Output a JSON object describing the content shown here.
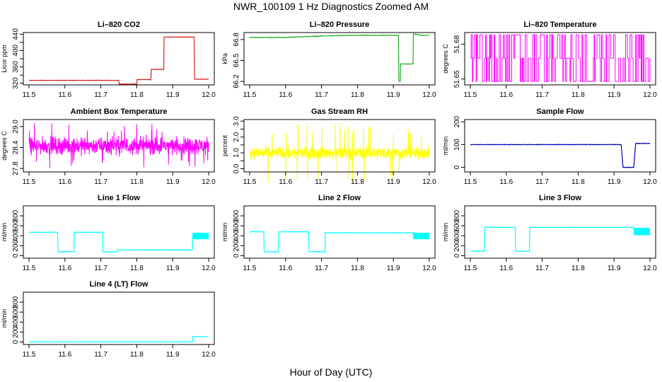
{
  "title": "NWR_100109  1 Hz Diagnostics Zoomed AM",
  "x_axis_title": "Hour of Day (UTC)",
  "chart_data": [
    {
      "type": "line",
      "title": "Li–820 CO2",
      "ylabel": "Licor ppm",
      "color": "#d42020",
      "ylim": [
        316,
        444
      ],
      "yticks": [
        320,
        340,
        360,
        380,
        400,
        420,
        440
      ],
      "ytick_labels": [
        "320",
        "",
        "360",
        "",
        "400",
        "",
        "440"
      ],
      "xlim": [
        11.5,
        12.0
      ],
      "xticks": [
        11.5,
        11.6,
        11.7,
        11.8,
        11.9,
        12.0
      ],
      "noise": 0.8,
      "segments": [
        [
          11.5,
          327
        ],
        [
          11.75,
          327
        ],
        [
          11.75,
          318
        ],
        [
          11.8,
          318
        ],
        [
          11.8,
          329
        ],
        [
          11.84,
          329
        ],
        [
          11.84,
          354
        ],
        [
          11.875,
          354
        ],
        [
          11.875,
          433
        ],
        [
          11.96,
          433
        ],
        [
          11.96,
          330
        ],
        [
          12.0,
          330
        ]
      ]
    },
    {
      "type": "line",
      "title": "Li–820 Pressure",
      "ylabel": "kPa",
      "color": "#20b020",
      "ylim": [
        66.15,
        66.9
      ],
      "yticks": [
        66.2,
        66.5,
        66.8
      ],
      "ytick_labels": [
        "66.2",
        "66.5",
        "66.8"
      ],
      "xlim": [
        11.5,
        12.0
      ],
      "xticks": [
        11.5,
        11.6,
        11.7,
        11.8,
        11.9,
        12.0
      ],
      "noise": 0.006,
      "segments": [
        [
          11.5,
          66.83
        ],
        [
          11.6,
          66.83
        ],
        [
          11.7,
          66.85
        ],
        [
          11.8,
          66.86
        ],
        [
          11.915,
          66.86
        ],
        [
          11.915,
          66.2
        ],
        [
          11.92,
          66.2
        ],
        [
          11.92,
          66.45
        ],
        [
          11.955,
          66.45
        ],
        [
          11.955,
          66.88
        ],
        [
          11.98,
          66.86
        ],
        [
          12.0,
          66.86
        ]
      ]
    },
    {
      "type": "binary",
      "title": "Li–820 Temperature",
      "ylabel": "degrees C",
      "color": "#ff00ff",
      "ylim": [
        51.645,
        51.69
      ],
      "yticks": [
        51.65,
        51.68
      ],
      "ytick_labels": [
        "51.65",
        "51.68"
      ],
      "xlim": [
        11.5,
        12.0
      ],
      "xticks": [
        11.5,
        11.6,
        11.7,
        11.8,
        11.9,
        12.0
      ],
      "levels": [
        51.648,
        51.668,
        51.688
      ]
    },
    {
      "type": "noise",
      "title": "Ambient Box Temperature",
      "ylabel": "degrees C",
      "color": "#ff00ff",
      "ylim": [
        27.7,
        29.2
      ],
      "yticks": [
        27.8,
        28.4,
        29.0
      ],
      "ytick_labels": [
        "27.8",
        "28.4",
        "29.0"
      ],
      "xlim": [
        11.5,
        12.0
      ],
      "xticks": [
        11.5,
        11.6,
        11.7,
        11.8,
        11.9,
        12.0
      ],
      "center": 28.45,
      "spread": 0.35,
      "spike": 0.65
    },
    {
      "type": "noise",
      "title": "Gas Stream RH",
      "ylabel": "percent",
      "color": "#ffff00",
      "ylim": [
        -0.2,
        3.1
      ],
      "yticks": [
        0.0,
        0.5,
        1.0,
        1.5,
        2.0,
        2.5,
        3.0
      ],
      "ytick_labels": [
        "0.0",
        "",
        "1.0",
        "",
        "2.0",
        "",
        "3.0"
      ],
      "xlim": [
        11.5,
        12.0
      ],
      "xticks": [
        11.5,
        11.6,
        11.7,
        11.8,
        11.9,
        12.0
      ],
      "center": 1.0,
      "spread": 0.55,
      "spike": 1.9
    },
    {
      "type": "line",
      "title": "Sample Flow",
      "ylabel": "ml/min",
      "color": "#0000c0",
      "ylim": [
        -20,
        210
      ],
      "yticks": [
        0,
        100,
        200
      ],
      "ytick_labels": [
        "0",
        "100",
        "200"
      ],
      "xlim": [
        11.5,
        12.0
      ],
      "xticks": [
        11.5,
        11.6,
        11.7,
        11.8,
        11.9,
        12.0
      ],
      "noise": 1.5,
      "segments": [
        [
          11.5,
          100
        ],
        [
          11.92,
          100
        ],
        [
          11.925,
          0
        ],
        [
          11.955,
          0
        ],
        [
          11.96,
          105
        ],
        [
          12.0,
          105
        ]
      ]
    },
    {
      "type": "line",
      "title": "Line 1 Flow",
      "ylabel": "ml/min",
      "color": "#00ffff",
      "ylim": [
        -50,
        1000
      ],
      "yticks": [
        0,
        200,
        400,
        600,
        800
      ],
      "ytick_labels": [
        "0",
        "200",
        "400",
        "600",
        "800"
      ],
      "xlim": [
        11.5,
        12.0
      ],
      "xticks": [
        11.5,
        11.6,
        11.7,
        11.8,
        11.9,
        12.0
      ],
      "noise": 8,
      "segments": [
        [
          11.5,
          470
        ],
        [
          11.58,
          470
        ],
        [
          11.58,
          80
        ],
        [
          11.625,
          80
        ],
        [
          11.625,
          470
        ],
        [
          11.705,
          470
        ],
        [
          11.705,
          75
        ],
        [
          11.745,
          75
        ],
        [
          11.745,
          115
        ],
        [
          11.955,
          115
        ],
        [
          11.955,
          400
        ],
        [
          12.0,
          400
        ]
      ],
      "bands": [
        [
          11.955,
          12.0,
          330,
          460
        ]
      ]
    },
    {
      "type": "line",
      "title": "Line 2 Flow",
      "ylabel": "ml/min",
      "color": "#00ffff",
      "ylim": [
        -50,
        1000
      ],
      "yticks": [
        0,
        200,
        400,
        600,
        800
      ],
      "ytick_labels": [
        "0",
        "200",
        "400",
        "600",
        "800"
      ],
      "xlim": [
        11.5,
        12.0
      ],
      "xticks": [
        11.5,
        11.6,
        11.7,
        11.8,
        11.9,
        12.0
      ],
      "noise": 8,
      "segments": [
        [
          11.5,
          480
        ],
        [
          11.54,
          480
        ],
        [
          11.54,
          80
        ],
        [
          11.58,
          80
        ],
        [
          11.58,
          480
        ],
        [
          11.665,
          480
        ],
        [
          11.665,
          80
        ],
        [
          11.71,
          80
        ],
        [
          11.71,
          460
        ],
        [
          11.955,
          460
        ],
        [
          11.955,
          400
        ],
        [
          12.0,
          400
        ]
      ],
      "bands": [
        [
          11.955,
          12.0,
          330,
          460
        ]
      ]
    },
    {
      "type": "line",
      "title": "Line 3 Flow",
      "ylabel": "ml/min",
      "color": "#00ffff",
      "ylim": [
        -50,
        1000
      ],
      "yticks": [
        0,
        200,
        400,
        600,
        800
      ],
      "ytick_labels": [
        "0",
        "200",
        "400",
        "600",
        "800"
      ],
      "xlim": [
        11.5,
        12.0
      ],
      "xticks": [
        11.5,
        11.6,
        11.7,
        11.8,
        11.9,
        12.0
      ],
      "noise": 8,
      "segments": [
        [
          11.5,
          90
        ],
        [
          11.54,
          90
        ],
        [
          11.54,
          570
        ],
        [
          11.625,
          570
        ],
        [
          11.625,
          90
        ],
        [
          11.665,
          90
        ],
        [
          11.665,
          570
        ],
        [
          11.955,
          570
        ],
        [
          11.955,
          480
        ],
        [
          12.0,
          480
        ]
      ],
      "bands": [
        [
          11.955,
          12.0,
          410,
          560
        ]
      ]
    },
    {
      "type": "line",
      "title": "Line 4 (LT) Flow",
      "ylabel": "ml/min",
      "color": "#00ffff",
      "ylim": [
        -50,
        1000
      ],
      "yticks": [
        0,
        200,
        400,
        600,
        800
      ],
      "ytick_labels": [
        "0",
        "200",
        "400",
        "600",
        "800"
      ],
      "xlim": [
        11.5,
        12.0
      ],
      "xticks": [
        11.5,
        11.6,
        11.7,
        11.8,
        11.9,
        12.0
      ],
      "noise": 2,
      "segments": [
        [
          11.5,
          5
        ],
        [
          11.955,
          5
        ],
        [
          11.955,
          110
        ],
        [
          12.0,
          110
        ]
      ]
    }
  ]
}
